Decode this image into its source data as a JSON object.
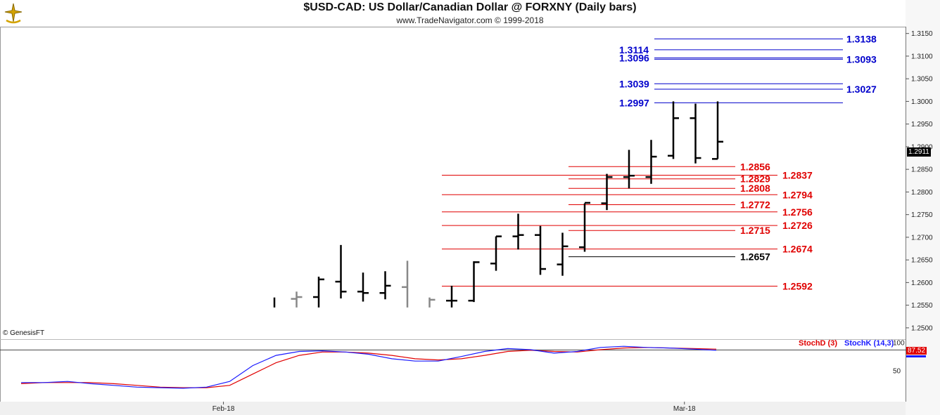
{
  "header": {
    "title": "$USD-CAD:  US Dollar/Canadian Dollar @ FORXNY  (Daily bars)",
    "subtitle": "www.TradeNavigator.com © 1999-2018"
  },
  "footer": {
    "copyright": "© GenesisFT",
    "stochd_label": "StochD (3)",
    "stochk_label": "StochK (14,3)",
    "last_price": "1.2911",
    "last_stoch": "87.52"
  },
  "colors": {
    "bars_black": "#000000",
    "bars_gray": "#888888",
    "blue_levels": "#0000cc",
    "red_levels": "#e00000",
    "stochk": "#1a1aff",
    "stochd": "#e00000"
  },
  "chart_data": {
    "type": "ohlc",
    "title": "$USD-CAD:  US Dollar/Canadian Dollar @ FORXNY  (Daily bars)",
    "ylim": [
      1.2475,
      1.3165
    ],
    "y_ticks": [
      "1.2500",
      "1.2550",
      "1.2600",
      "1.2650",
      "1.2700",
      "1.2750",
      "1.2800",
      "1.2850",
      "1.2900",
      "1.2950",
      "1.3000",
      "1.3050",
      "1.3100",
      "1.3150"
    ],
    "x_labels": [
      {
        "label": "Feb-18",
        "bar_index": -2.3
      },
      {
        "label": "Mar-18",
        "bar_index": 18.5
      }
    ],
    "bars": [
      {
        "open": null,
        "high": 1.2567,
        "low": 1.2545,
        "close": null,
        "color": "black"
      },
      {
        "open": 1.2564,
        "high": 1.258,
        "low": 1.2545,
        "close": 1.2568,
        "color": "gray"
      },
      {
        "open": 1.2568,
        "high": 1.2613,
        "low": 1.2545,
        "close": 1.2607,
        "color": "black"
      },
      {
        "open": 1.2602,
        "high": 1.2683,
        "low": 1.2565,
        "close": 1.258,
        "color": "black"
      },
      {
        "open": 1.258,
        "high": 1.2622,
        "low": 1.2558,
        "close": 1.2577,
        "color": "black"
      },
      {
        "open": 1.2577,
        "high": 1.2625,
        "low": 1.2563,
        "close": 1.2593,
        "color": "black"
      },
      {
        "open": 1.259,
        "high": 1.2648,
        "low": 1.2545,
        "close": null,
        "color": "gray"
      },
      {
        "open": null,
        "high": 1.2567,
        "low": 1.2545,
        "close": 1.2562,
        "color": "gray"
      },
      {
        "open": 1.256,
        "high": 1.2593,
        "low": 1.2545,
        "close": 1.256,
        "color": "black"
      },
      {
        "open": 1.256,
        "high": 1.2647,
        "low": 1.2557,
        "close": 1.2645,
        "color": "black"
      },
      {
        "open": 1.2642,
        "high": 1.2702,
        "low": 1.2626,
        "close": 1.2702,
        "color": "black"
      },
      {
        "open": 1.2702,
        "high": 1.2752,
        "low": 1.2673,
        "close": 1.2705,
        "color": "black"
      },
      {
        "open": 1.2705,
        "high": 1.2725,
        "low": 1.2617,
        "close": 1.263,
        "color": "black"
      },
      {
        "open": 1.264,
        "high": 1.271,
        "low": 1.2615,
        "close": 1.268,
        "color": "black"
      },
      {
        "open": 1.2678,
        "high": 1.2775,
        "low": 1.2668,
        "close": 1.2776,
        "color": "black"
      },
      {
        "open": 1.2775,
        "high": 1.284,
        "low": 1.276,
        "close": 1.2833,
        "color": "black"
      },
      {
        "open": 1.2833,
        "high": 1.2893,
        "low": 1.2808,
        "close": 1.2836,
        "color": "black"
      },
      {
        "open": 1.2833,
        "high": 1.2915,
        "low": 1.2818,
        "close": 1.2878,
        "color": "black"
      },
      {
        "open": 1.288,
        "high": 1.3,
        "low": 1.2873,
        "close": 1.2963,
        "color": "black"
      },
      {
        "open": 1.2963,
        "high": 1.2995,
        "low": 1.2863,
        "close": 1.2875,
        "color": "black"
      },
      {
        "open": 1.2873,
        "high": 1.3,
        "low": 1.2873,
        "close": 1.2911,
        "color": "black"
      }
    ],
    "levels_blue": [
      {
        "value": 1.3138,
        "label": "1.3138",
        "label_side": "right"
      },
      {
        "value": 1.3114,
        "label": "1.3114",
        "label_side": "left"
      },
      {
        "value": 1.3096,
        "label": "1.3096",
        "label_side": "left"
      },
      {
        "value": 1.3093,
        "label": "1.3093",
        "label_side": "right"
      },
      {
        "value": 1.3039,
        "label": "1.3039",
        "label_side": "left"
      },
      {
        "value": 1.3027,
        "label": "1.3027",
        "label_side": "right"
      },
      {
        "value": 1.2997,
        "label": "1.2997",
        "label_side": "left"
      }
    ],
    "levels_red": [
      {
        "value": 1.2856,
        "label": "1.2856",
        "label_side": "left"
      },
      {
        "value": 1.2837,
        "label": "1.2837",
        "label_side": "right"
      },
      {
        "value": 1.2829,
        "label": "1.2829",
        "label_side": "left"
      },
      {
        "value": 1.2808,
        "label": "1.2808",
        "label_side": "left"
      },
      {
        "value": 1.2794,
        "label": "1.2794",
        "label_side": "right"
      },
      {
        "value": 1.2772,
        "label": "1.2772",
        "label_side": "left"
      },
      {
        "value": 1.2756,
        "label": "1.2756",
        "label_side": "right"
      },
      {
        "value": 1.2726,
        "label": "1.2726",
        "label_side": "right"
      },
      {
        "value": 1.2715,
        "label": "1.2715",
        "label_side": "left"
      },
      {
        "value": 1.2674,
        "label": "1.2674",
        "label_side": "right"
      },
      {
        "value": 1.2592,
        "label": "1.2592",
        "label_side": "right"
      }
    ],
    "levels_black": [
      {
        "value": 1.2657,
        "label": "1.2657",
        "label_side": "left"
      }
    ],
    "stoch": {
      "ylim": [
        0,
        100
      ],
      "y_ticks": [
        "100",
        "50"
      ],
      "reference_level": 87.52,
      "stochk": [
        30,
        30,
        32,
        28,
        25,
        22,
        21,
        20,
        22,
        32,
        60,
        78,
        85,
        86,
        84,
        80,
        72,
        68,
        68,
        76,
        85,
        90,
        88,
        82,
        85,
        92,
        94,
        92,
        91,
        89,
        87
      ],
      "stochd": [
        28,
        30,
        30,
        30,
        28,
        25,
        22,
        21,
        21,
        25,
        45,
        65,
        78,
        84,
        84,
        82,
        78,
        72,
        70,
        72,
        78,
        85,
        87,
        85,
        84,
        88,
        91,
        92,
        91,
        90,
        89
      ]
    }
  }
}
